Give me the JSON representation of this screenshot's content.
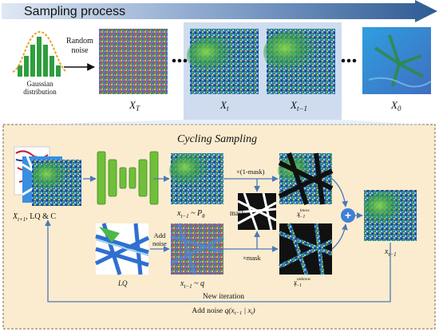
{
  "header": {
    "title": "Sampling process",
    "arrow_color": "#2e5b93"
  },
  "gaussian": {
    "label_line1": "Gaussian",
    "label_line2": "distribution",
    "bar_color": "#2e9e3e",
    "curve_color": "#f0a020"
  },
  "random_noise": {
    "line1": "Random",
    "line2": "noise"
  },
  "top_frames": [
    {
      "name": "XT",
      "symbol": "X",
      "subscript": "T"
    },
    {
      "name": "Xt",
      "symbol": "X",
      "subscript": "t"
    },
    {
      "name": "Xt-1",
      "symbol": "X",
      "subscript": "t−1"
    },
    {
      "name": "X0",
      "symbol": "X",
      "subscript": "0"
    }
  ],
  "ellipsis": "• • •",
  "cycling": {
    "title": "Cycling Sampling",
    "input_label": {
      "symbol": "X",
      "subscript": "t+1",
      "suffix": ", LQ & C"
    },
    "pred_label": {
      "text": "x",
      "subscript": "t−1",
      "dist": " ~ P",
      "dist_sub": "θ"
    },
    "mask_label": "mask",
    "times_inv_mask": "×(1-mask)",
    "times_mask": "×mask",
    "known_label": {
      "text": "x",
      "subscript": "t−1",
      "superscript": "know"
    },
    "unknown_label": {
      "text": "x",
      "subscript": "t−1",
      "superscript": "unknow"
    },
    "lq_label": "LQ",
    "add_noise": {
      "line1": "Add",
      "line2": "noise"
    },
    "q_label": {
      "text": "x",
      "subscript": "t−1",
      "dist": " ~ q"
    },
    "output_label": {
      "text": "x",
      "subscript": "t−1"
    },
    "plus_symbol": "+",
    "new_iteration": "New iteration",
    "add_noise_q": {
      "prefix": "Add noise ",
      "expr": "q(x",
      "sub1": "t−1",
      "mid": " | x",
      "sub2": "t",
      "end": ")"
    },
    "unet_color": "#6fbf3a",
    "arrow_color": "#4a78b8"
  }
}
